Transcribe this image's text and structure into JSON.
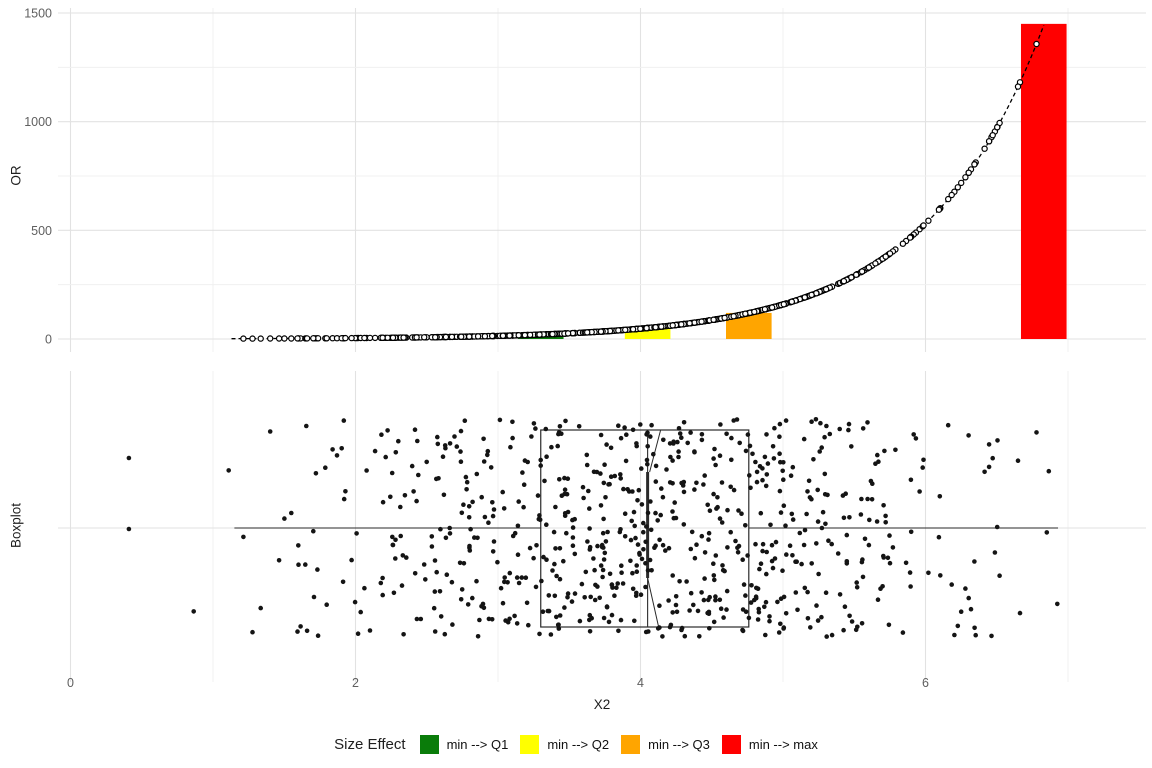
{
  "chart_data": {
    "panels": [
      {
        "id": "or-curve-panel",
        "type": "line",
        "ylabel": "OR",
        "ylim": [
          0,
          1500
        ],
        "y_major_ticks": [
          0,
          500,
          1000,
          1500
        ],
        "y_minor_ticks": [
          250,
          750,
          1250
        ],
        "grid": true,
        "curve": {
          "type": "exponential",
          "formula": "OR(x) = exp(1.205*x - 0.955)",
          "a": -0.955,
          "b": 1.205,
          "x_start": 1.13,
          "x_end": 6.84,
          "line_style": "dashed",
          "marker": "open-circle"
        },
        "bars": [
          {
            "label": "min --> Q1",
            "x": 3.3,
            "or": 21,
            "color": "#0a7c0a"
          },
          {
            "label": "min --> Q2",
            "x": 4.05,
            "or": 51,
            "color": "#ffff00"
          },
          {
            "label": "min --> Q3",
            "x": 4.76,
            "or": 120,
            "color": "#ffa500"
          },
          {
            "label": "min --> max",
            "x": 6.83,
            "or": 1450,
            "color": "#ff0000"
          }
        ],
        "bar_width_units": 0.32
      },
      {
        "id": "boxplot-panel",
        "type": "boxplot_jitter",
        "ylabel": "Boxplot",
        "box": {
          "whisker_min": 1.15,
          "q1": 3.3,
          "median": 4.05,
          "q3": 4.76,
          "whisker_max": 6.93,
          "notched": true
        },
        "outliers": [
          0.41,
          0.41
        ],
        "points": {
          "n": 750,
          "mean": 4.05,
          "sd": 1.16,
          "min": 0.35,
          "max": 6.93
        }
      }
    ],
    "x_axis": {
      "label": "X2",
      "major_ticks": [
        0,
        2,
        4,
        6
      ],
      "minor_ticks": [
        1,
        3,
        5,
        7
      ],
      "xlim": [
        0,
        7.55
      ]
    },
    "legend_position": "bottom"
  },
  "legend": {
    "title": "Size Effect",
    "items": [
      {
        "label": "min --> Q1",
        "color": "#0a7c0a"
      },
      {
        "label": "min --> Q2",
        "color": "#ffff00"
      },
      {
        "label": "min --> Q3",
        "color": "#ffa500"
      },
      {
        "label": "min --> max",
        "color": "#ff0000"
      }
    ]
  },
  "style": {
    "background": "#ffffff",
    "grid_major": "#e2e2e2",
    "grid_minor": "#f0f0f0",
    "axis_text_color": "#5f5f5f",
    "axis_title_color": "#1f1f1f",
    "point_color": "#141414",
    "box_stroke": "#2a2a2a",
    "curve_color": "#000000"
  }
}
